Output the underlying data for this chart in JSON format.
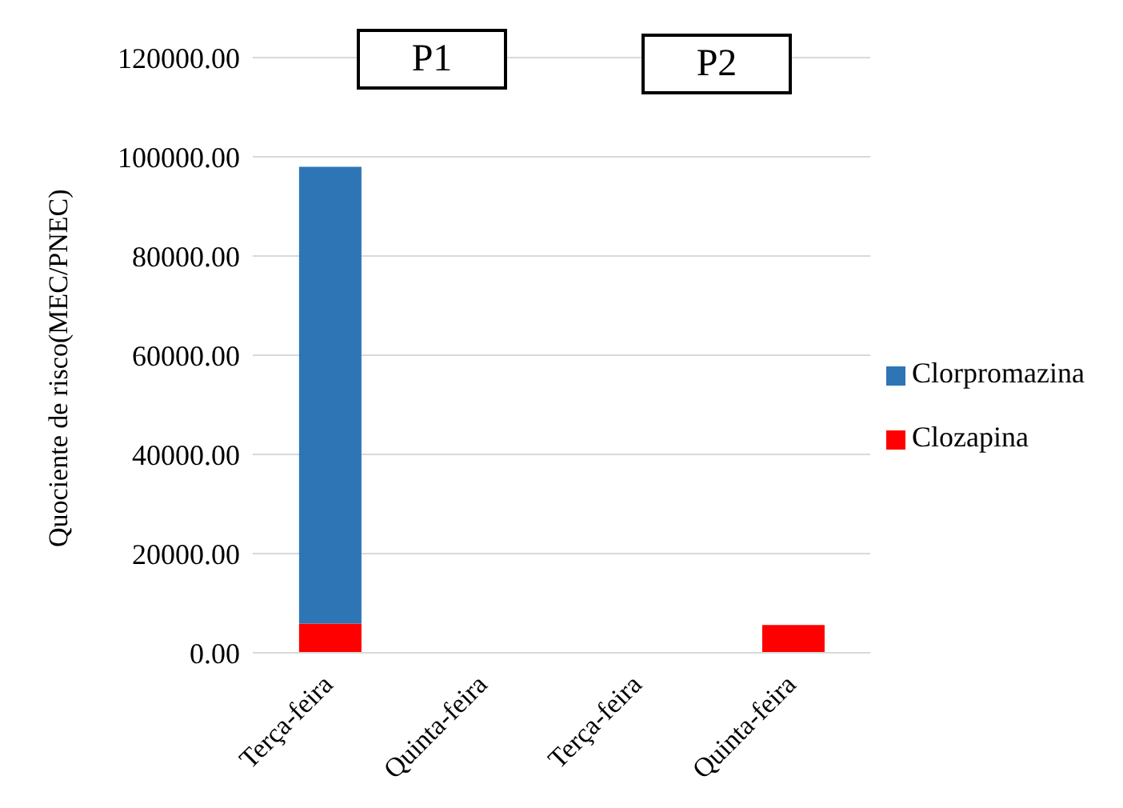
{
  "chart_data": {
    "type": "bar",
    "ylabel": "Quociente de risco(MEC/PNEC)",
    "categories": [
      "Terça-feira",
      "Quinta-feira",
      "Terça-feira",
      "Quinta-feira"
    ],
    "stacked": true,
    "series": [
      {
        "name": "Clozapina",
        "color": "#ff0000",
        "values": [
          5900,
          0,
          0,
          5600
        ]
      },
      {
        "name": "Clorpromazina",
        "color": "#2e75b6",
        "values": [
          92100,
          0,
          0,
          0
        ]
      }
    ],
    "ylim": [
      0,
      120000
    ],
    "yticks": [
      {
        "value": 0,
        "label": "0.00"
      },
      {
        "value": 20000,
        "label": "20000.00"
      },
      {
        "value": 40000,
        "label": "40000.00"
      },
      {
        "value": 60000,
        "label": "60000.00"
      },
      {
        "value": 80000,
        "label": "80000.00"
      },
      {
        "value": 100000,
        "label": "100000.00"
      },
      {
        "value": 120000,
        "label": "120000.00"
      }
    ],
    "grid": "y",
    "legend": "right",
    "annotations": [
      "P1",
      "P2"
    ]
  }
}
